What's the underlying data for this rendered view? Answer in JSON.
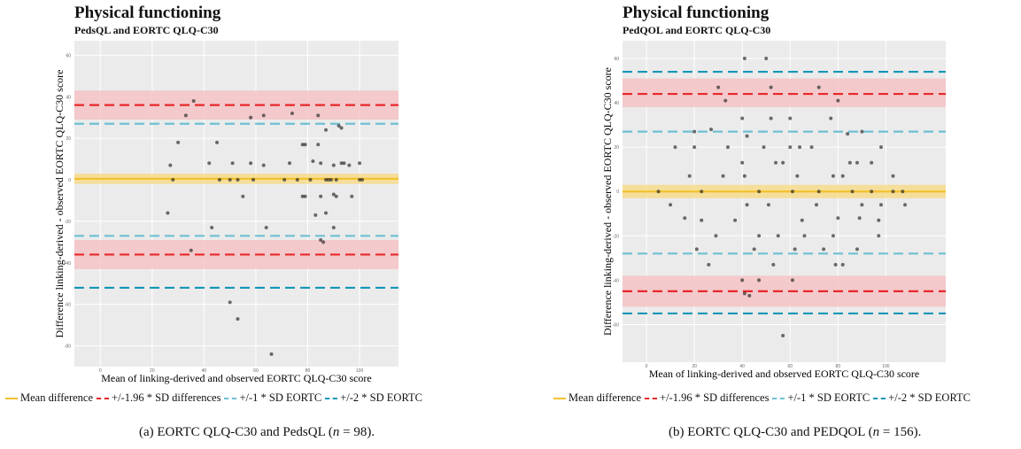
{
  "chart_data": [
    {
      "type": "scatter",
      "panel": "left",
      "title": "Physical functioning",
      "subtitle": "PedsQL and EORTC QLQ-C30",
      "xlabel": "Mean of linking-derived and observed EORTC QLQ-C30 score",
      "ylabel": "Difference linking-derived - observed EORTC QLQ-C30 score",
      "xlim": [
        -10,
        115
      ],
      "ylim": [
        -90,
        67
      ],
      "x_ticks": [
        0,
        20,
        40,
        60,
        80,
        100
      ],
      "x_tick_labels": [
        "0",
        "20",
        "40",
        "60",
        "80",
        "100"
      ],
      "y_ticks": [
        60,
        40,
        20,
        0,
        -20,
        -40,
        -60,
        -80
      ],
      "y_tick_labels": [
        "60",
        "40",
        "20",
        "0",
        "-20",
        "-40",
        "-60",
        "-80"
      ],
      "grid": true,
      "mean_difference": 0.5,
      "mean_band": [
        -2,
        3
      ],
      "loa_196": [
        36,
        -36
      ],
      "loa_196_bands": [
        [
          29,
          43
        ],
        [
          -43,
          -29
        ]
      ],
      "sd1": [
        27,
        -27
      ],
      "sd2": [
        -52
      ],
      "points": [
        [
          36,
          38
        ],
        [
          33,
          31
        ],
        [
          45,
          18
        ],
        [
          63,
          31
        ],
        [
          58,
          30
        ],
        [
          74,
          32
        ],
        [
          84,
          31
        ],
        [
          87,
          24
        ],
        [
          93,
          25
        ],
        [
          92,
          26
        ],
        [
          78,
          17
        ],
        [
          79,
          17
        ],
        [
          84,
          17
        ],
        [
          30,
          18
        ],
        [
          42,
          8
        ],
        [
          27,
          7
        ],
        [
          51,
          8
        ],
        [
          58,
          8
        ],
        [
          63,
          7
        ],
        [
          73,
          8
        ],
        [
          82,
          9
        ],
        [
          85,
          8
        ],
        [
          90,
          7
        ],
        [
          93,
          8
        ],
        [
          94,
          8
        ],
        [
          96,
          7
        ],
        [
          100,
          8
        ],
        [
          28,
          0
        ],
        [
          46,
          0
        ],
        [
          50,
          0
        ],
        [
          53,
          0
        ],
        [
          59,
          0
        ],
        [
          71,
          0
        ],
        [
          76,
          0
        ],
        [
          81,
          0
        ],
        [
          87,
          0
        ],
        [
          88,
          0
        ],
        [
          89,
          0
        ],
        [
          91,
          0
        ],
        [
          100,
          0
        ],
        [
          101,
          0
        ],
        [
          55,
          -8
        ],
        [
          78,
          -8
        ],
        [
          79,
          -8
        ],
        [
          85,
          -8
        ],
        [
          90,
          -7
        ],
        [
          91,
          -8
        ],
        [
          97,
          -8
        ],
        [
          83,
          -17
        ],
        [
          87,
          -16
        ],
        [
          43,
          -23
        ],
        [
          64,
          -23
        ],
        [
          90,
          -23
        ],
        [
          26,
          -16
        ],
        [
          85,
          -29
        ],
        [
          86,
          -30
        ],
        [
          35,
          -34
        ],
        [
          50,
          -59
        ],
        [
          53,
          -67
        ],
        [
          66,
          -84
        ]
      ],
      "legend": [
        "Mean difference",
        "+/-1.96 * SD differences",
        "+/-1 * SD EORTC",
        "+/-2 * SD EORTC"
      ],
      "colors": {
        "mean": "#f2c12e",
        "mean_band": "#f7dc8c",
        "loa196": "#e8282b",
        "loa196_band": "#f4c3c6",
        "sd1": "#6ec0d3",
        "sd2": "#1297b7",
        "panel": "#ebebeb",
        "grid": "#ffffff",
        "point": "#222222"
      }
    },
    {
      "type": "scatter",
      "panel": "right",
      "title": "Physical functioning",
      "subtitle": "PedQOL and EORTC QLQ-C30",
      "xlabel": "Mean of linking-derived and observed EORTC QLQ-C30 score",
      "ylabel": "Difference linking-derived - observed EORTC QLQ-C30 score",
      "xlim": [
        -10,
        125
      ],
      "ylim": [
        -77,
        68
      ],
      "x_ticks": [
        0,
        20,
        40,
        60,
        80,
        100
      ],
      "x_tick_labels": [
        "0",
        "20",
        "40",
        "60",
        "80",
        "100"
      ],
      "y_ticks": [
        60,
        40,
        20,
        0,
        -20,
        -40,
        -60
      ],
      "y_tick_labels": [
        "60",
        "40",
        "20",
        "0",
        "-20",
        "-40",
        "-60"
      ],
      "grid": true,
      "mean_difference": 0,
      "mean_band": [
        -3,
        3
      ],
      "loa_196": [
        44,
        -45
      ],
      "loa_196_bands": [
        [
          38,
          51
        ],
        [
          -52,
          -38
        ]
      ],
      "sd1": [
        27,
        -28
      ],
      "sd2": [
        54,
        -55
      ],
      "points": [
        [
          41,
          60
        ],
        [
          50,
          60
        ],
        [
          30,
          47
        ],
        [
          52,
          47
        ],
        [
          72,
          47
        ],
        [
          33,
          41
        ],
        [
          80,
          41
        ],
        [
          40,
          33
        ],
        [
          52,
          33
        ],
        [
          60,
          33
        ],
        [
          77,
          33
        ],
        [
          84,
          26
        ],
        [
          90,
          27
        ],
        [
          20,
          27
        ],
        [
          27,
          28
        ],
        [
          42,
          25
        ],
        [
          49,
          20
        ],
        [
          12,
          20
        ],
        [
          20,
          20
        ],
        [
          60,
          20
        ],
        [
          64,
          20
        ],
        [
          69,
          20
        ],
        [
          34,
          20
        ],
        [
          98,
          20
        ],
        [
          40,
          13
        ],
        [
          54,
          13
        ],
        [
          57,
          13
        ],
        [
          85,
          13
        ],
        [
          88,
          13
        ],
        [
          94,
          13
        ],
        [
          18,
          7
        ],
        [
          32,
          7
        ],
        [
          41,
          7
        ],
        [
          63,
          7
        ],
        [
          78,
          7
        ],
        [
          82,
          7
        ],
        [
          103,
          7
        ],
        [
          5,
          0
        ],
        [
          23,
          0
        ],
        [
          47,
          0
        ],
        [
          61,
          0
        ],
        [
          72,
          0
        ],
        [
          86,
          0
        ],
        [
          94,
          0
        ],
        [
          103,
          0
        ],
        [
          107,
          0
        ],
        [
          10,
          -6
        ],
        [
          42,
          -6
        ],
        [
          51,
          -6
        ],
        [
          71,
          -6
        ],
        [
          90,
          -6
        ],
        [
          98,
          -6
        ],
        [
          108,
          -6
        ],
        [
          16,
          -12
        ],
        [
          23,
          -13
        ],
        [
          37,
          -13
        ],
        [
          65,
          -13
        ],
        [
          80,
          -12
        ],
        [
          89,
          -12
        ],
        [
          97,
          -13
        ],
        [
          29,
          -20
        ],
        [
          47,
          -20
        ],
        [
          55,
          -20
        ],
        [
          66,
          -20
        ],
        [
          78,
          -20
        ],
        [
          97,
          -20
        ],
        [
          21,
          -26
        ],
        [
          45,
          -26
        ],
        [
          62,
          -26
        ],
        [
          74,
          -26
        ],
        [
          88,
          -26
        ],
        [
          26,
          -33
        ],
        [
          53,
          -33
        ],
        [
          79,
          -33
        ],
        [
          82,
          -33
        ],
        [
          41,
          -46
        ],
        [
          43,
          -47
        ],
        [
          40,
          -40
        ],
        [
          47,
          -40
        ],
        [
          61,
          -40
        ],
        [
          57,
          -65
        ]
      ],
      "legend": [
        "Mean difference",
        "+/-1.96 * SD differences",
        "+/-1 * SD EORTC",
        "+/-2 * SD EORTC"
      ],
      "colors": {
        "mean": "#f2c12e",
        "mean_band": "#f7dc8c",
        "loa196": "#e8282b",
        "loa196_band": "#f4c3c6",
        "sd1": "#6ec0d3",
        "sd2": "#1297b7",
        "panel": "#ebebeb",
        "grid": "#ffffff",
        "point": "#222222"
      }
    }
  ],
  "captions": {
    "left_prefix": "(a) EORTC QLQ-C30 and PedsQL (",
    "left_n_var": "n",
    "left_suffix": " = 98).",
    "right_prefix": "(b) EORTC QLQ-C30 and PEDQOL (",
    "right_n_var": "n",
    "right_suffix": " = 156)."
  }
}
